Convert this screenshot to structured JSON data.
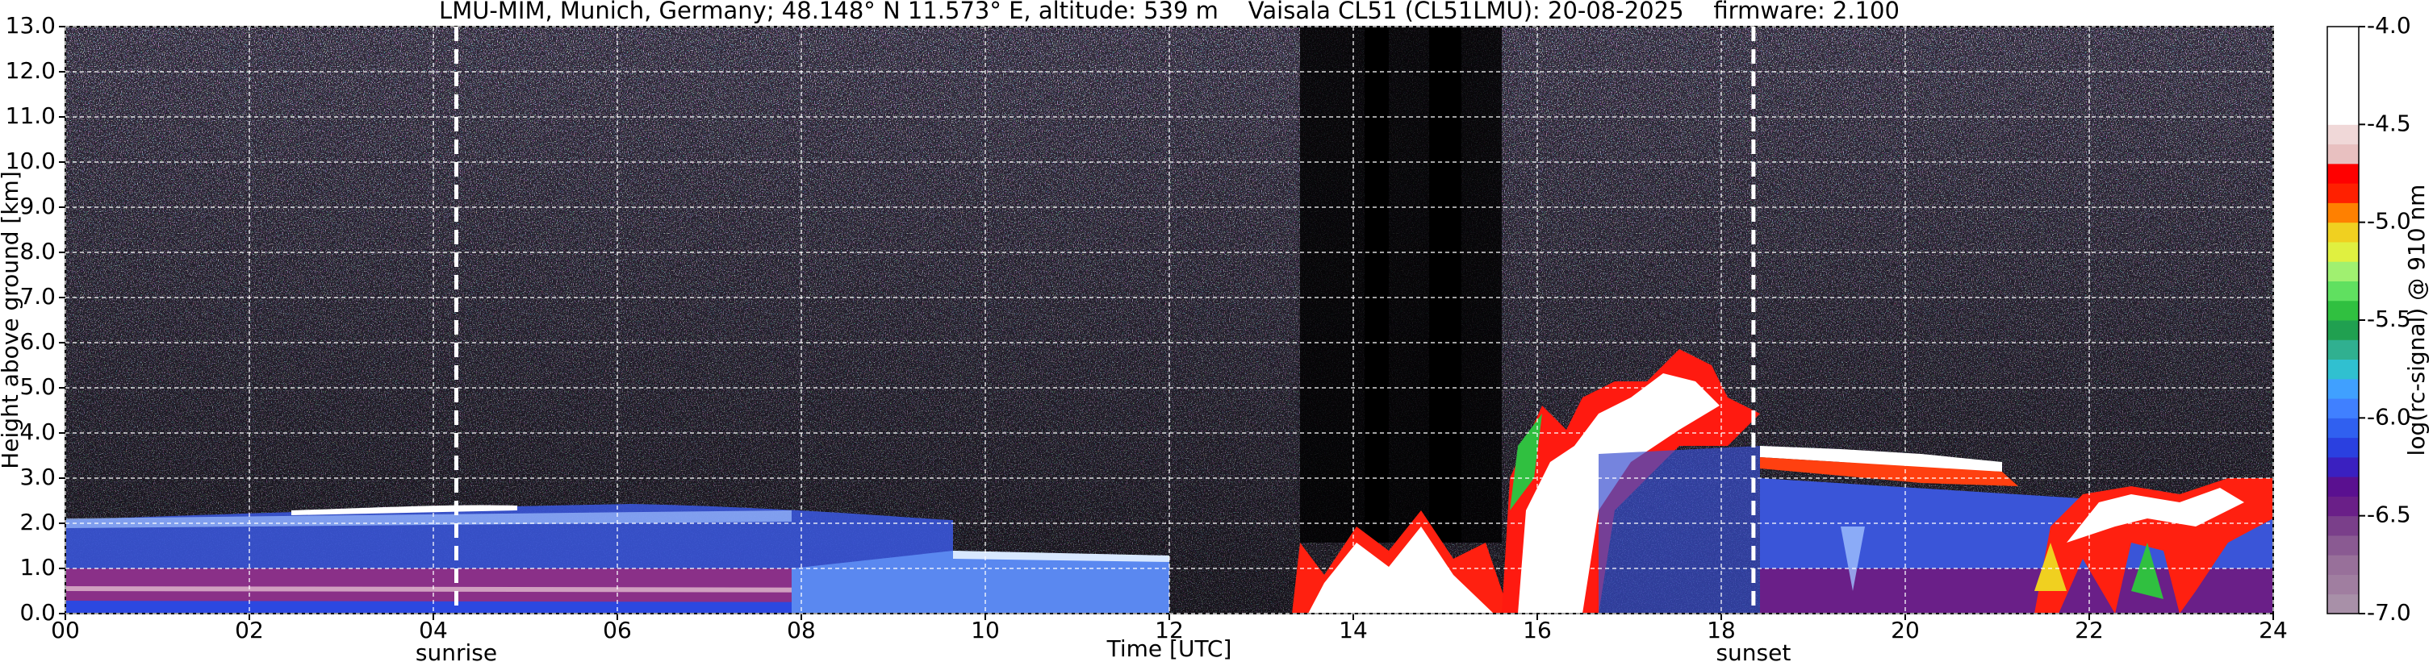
{
  "chart_data": {
    "type": "heatmap",
    "title": "LMU-MIM, Munich, Germany; 48.148° N 11.573° E, altitude: 539 m    Vaisala CL51 (CL51LMU): 20-08-2025    firmware: 2.100",
    "x_label": "Time [UTC]",
    "y_label": "Height above ground [km]",
    "xlim": [
      0,
      24
    ],
    "xticks": [
      {
        "value": 0,
        "label": "00"
      },
      {
        "value": 2,
        "label": "02"
      },
      {
        "value": 4,
        "label": "04"
      },
      {
        "value": 6,
        "label": "06"
      },
      {
        "value": 8,
        "label": "08"
      },
      {
        "value": 10,
        "label": "10"
      },
      {
        "value": 12,
        "label": "12"
      },
      {
        "value": 14,
        "label": "14"
      },
      {
        "value": 16,
        "label": "16"
      },
      {
        "value": 18,
        "label": "18"
      },
      {
        "value": 20,
        "label": "20"
      },
      {
        "value": 22,
        "label": "22"
      },
      {
        "value": 24,
        "label": "24"
      }
    ],
    "ylim": [
      0,
      13
    ],
    "yticks": [
      {
        "value": 0,
        "label": "0.0"
      },
      {
        "value": 1,
        "label": "1.0"
      },
      {
        "value": 2,
        "label": "2.0"
      },
      {
        "value": 3,
        "label": "3.0"
      },
      {
        "value": 4,
        "label": "4.0"
      },
      {
        "value": 5,
        "label": "5.0"
      },
      {
        "value": 6,
        "label": "6.0"
      },
      {
        "value": 7,
        "label": "7.0"
      },
      {
        "value": 8,
        "label": "8.0"
      },
      {
        "value": 9,
        "label": "9.0"
      },
      {
        "value": 10,
        "label": "10.0"
      },
      {
        "value": 11,
        "label": "11.0"
      },
      {
        "value": 12,
        "label": "12.0"
      },
      {
        "value": 13,
        "label": "13.0"
      }
    ],
    "grid": true,
    "colorbar": {
      "label": "log(rc-signal) @ 910 nm",
      "lim": [
        -7,
        -4
      ],
      "ticks": [
        {
          "value": -7,
          "label": "-7.0"
        },
        {
          "value": -6.5,
          "label": "-6.5"
        },
        {
          "value": -6,
          "label": "-6.0"
        },
        {
          "value": -5.5,
          "label": "-5.5"
        },
        {
          "value": -5,
          "label": "-5.0"
        },
        {
          "value": -4.5,
          "label": "-4.5"
        },
        {
          "value": -4,
          "label": "-4.0"
        }
      ],
      "colors": [
        "#a890a8",
        "#a07ea0",
        "#98709a",
        "#8a5a92",
        "#7a3f8a",
        "#6a1f88",
        "#5a1090",
        "#3a20c0",
        "#2a40e0",
        "#3060f0",
        "#4080ff",
        "#40a0ff",
        "#30c0d0",
        "#30b090",
        "#20a050",
        "#30c040",
        "#60e060",
        "#a0f070",
        "#e0f040",
        "#f0d020",
        "#ff8000",
        "#ff2000",
        "#ff0000",
        "#e8c0c0",
        "#f0d8d8",
        "#ffffff",
        "#ffffff",
        "#ffffff",
        "#ffffff",
        "#ffffff"
      ]
    },
    "annotations": [
      {
        "label": "sunrise",
        "x": 4.25
      },
      {
        "label": "sunset",
        "x": 18.35
      }
    ]
  }
}
